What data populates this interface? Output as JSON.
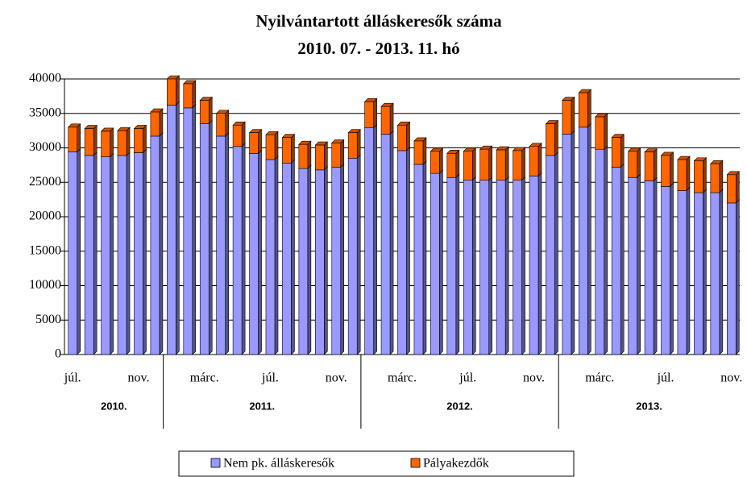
{
  "chart_data": {
    "type": "stacked_bar",
    "title": "Nyilvántartott álláskeresők száma",
    "subtitle": "2010. 07. - 2013. 11. hó",
    "categories": [
      "júl.",
      null,
      null,
      null,
      "nov.",
      null,
      null,
      null,
      "márc.",
      null,
      null,
      null,
      "júl.",
      null,
      null,
      null,
      "nov.",
      null,
      null,
      null,
      "márc.",
      null,
      null,
      null,
      "júl.",
      null,
      null,
      null,
      "nov.",
      null,
      null,
      null,
      "márc.",
      null,
      null,
      null,
      "júl.",
      null,
      null,
      null,
      "nov."
    ],
    "groups": [
      {
        "label": "2010.",
        "size": 6
      },
      {
        "label": "2011.",
        "size": 12
      },
      {
        "label": "2012.",
        "size": 12
      },
      {
        "label": "2013.",
        "size": 11
      }
    ],
    "series": [
      {
        "name": "Nem pk. álláskeresők",
        "color": "#9999ff",
        "values": [
          29400,
          28900,
          28700,
          28900,
          29300,
          31700,
          36200,
          35800,
          33500,
          31700,
          30200,
          29200,
          28300,
          27800,
          27000,
          26800,
          27200,
          28500,
          32900,
          32000,
          29600,
          27600,
          26300,
          25700,
          25300,
          25300,
          25300,
          25300,
          25900,
          28900,
          32000,
          33000,
          29800,
          27200,
          25700,
          25200,
          24400,
          23800,
          23500,
          23500,
          22000
        ]
      },
      {
        "name": "Pályakezdők",
        "color": "#ff6600",
        "values": [
          3600,
          3900,
          3700,
          3600,
          3500,
          3500,
          3800,
          3500,
          3400,
          3300,
          3100,
          3000,
          3600,
          3700,
          3500,
          3600,
          3500,
          3700,
          3800,
          4000,
          3700,
          3400,
          3200,
          3500,
          4200,
          4500,
          4400,
          4300,
          4300,
          4600,
          4900,
          5000,
          4700,
          4300,
          3800,
          4200,
          4500,
          4500,
          4600,
          4200,
          4100
        ]
      }
    ],
    "ylim": [
      0,
      40000
    ],
    "yticks": [
      0,
      5000,
      10000,
      15000,
      20000,
      25000,
      30000,
      35000,
      40000
    ],
    "grid": true,
    "legend": "bottom"
  }
}
